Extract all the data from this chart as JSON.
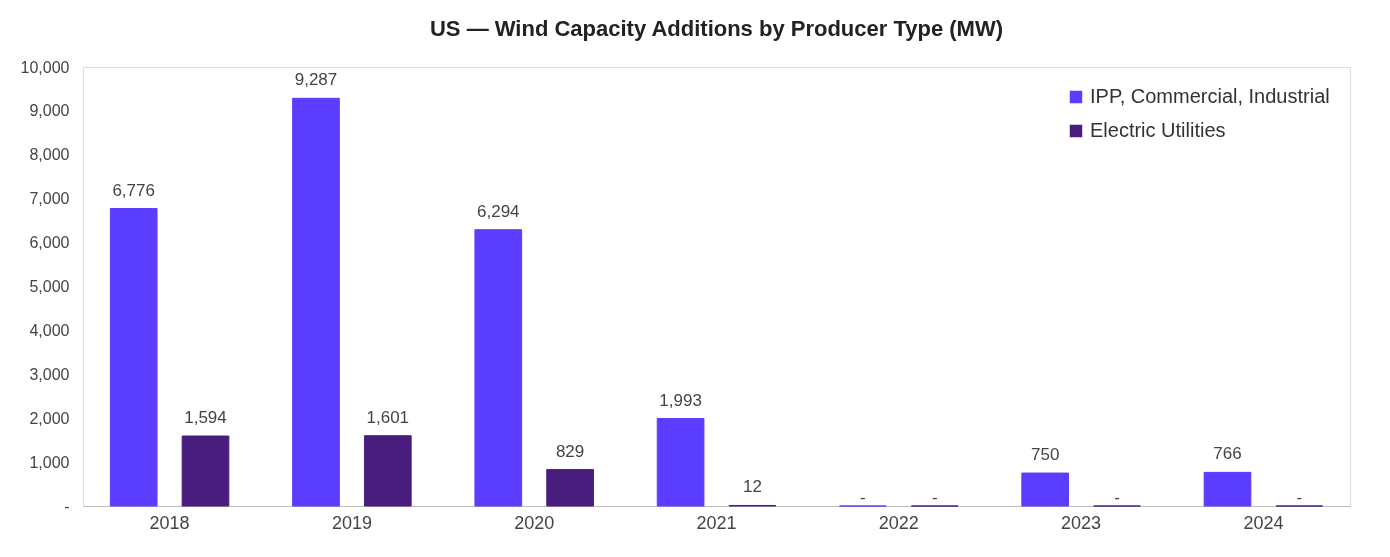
{
  "chart_data": {
    "type": "bar",
    "title": "US — Wind Capacity Additions by Producer Type (MW)",
    "categories": [
      "2018",
      "2019",
      "2020",
      "2021",
      "2022",
      "2023",
      "2024"
    ],
    "series": [
      {
        "name": "IPP, Commercial, Industrial",
        "color": "#5a3dff",
        "values": [
          6776,
          9287,
          6294,
          1993,
          0,
          750,
          766
        ],
        "value_labels": [
          "6,776",
          "9,287",
          "6,294",
          "1,993",
          "-",
          "750",
          "766"
        ]
      },
      {
        "name": "Electric Utilities",
        "color": "#491d7e",
        "values": [
          1594,
          1601,
          829,
          12,
          0,
          0,
          0
        ],
        "value_labels": [
          "1,594",
          "1,601",
          "829",
          "12",
          "-",
          "-",
          "-"
        ]
      }
    ],
    "ylim": [
      0,
      10000
    ],
    "yticks": [
      {
        "value": 0,
        "label": "-"
      },
      {
        "value": 1000,
        "label": "1,000"
      },
      {
        "value": 2000,
        "label": "2,000"
      },
      {
        "value": 3000,
        "label": "3,000"
      },
      {
        "value": 4000,
        "label": "4,000"
      },
      {
        "value": 5000,
        "label": "5,000"
      },
      {
        "value": 6000,
        "label": "6,000"
      },
      {
        "value": 7000,
        "label": "7,000"
      },
      {
        "value": 8000,
        "label": "8,000"
      },
      {
        "value": 9000,
        "label": "9,000"
      },
      {
        "value": 10000,
        "label": "10,000"
      }
    ],
    "grid": false,
    "legend": "top right"
  }
}
